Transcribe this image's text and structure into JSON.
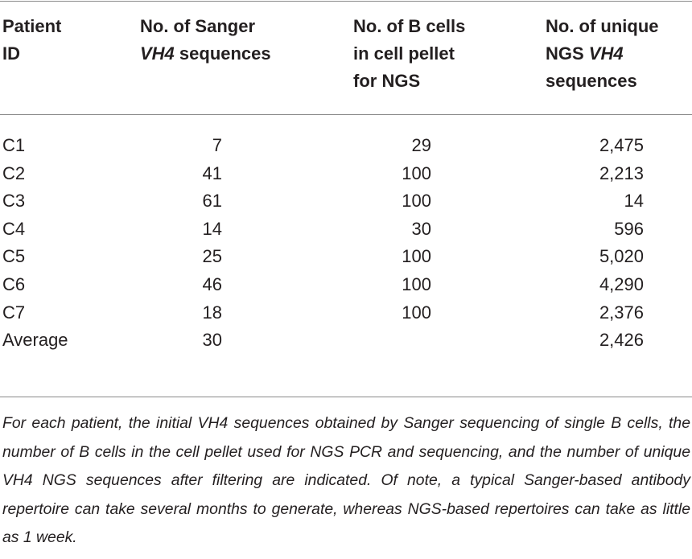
{
  "table": {
    "headers": {
      "patient_id": [
        "Patient",
        "ID"
      ],
      "sanger": {
        "line1": "No. of Sanger",
        "line2_italic": "VH4",
        "line2_rest": " sequences"
      },
      "bcells": [
        "No. of B cells",
        "in cell pellet",
        "for NGS"
      ],
      "ngs": {
        "line1": "No. of unique",
        "line2_plain": "NGS ",
        "line2_italic": "VH4",
        "line3": "sequences"
      }
    },
    "rows": [
      {
        "id": "C1",
        "sanger": "7",
        "bcells": "29",
        "ngs": "2,475"
      },
      {
        "id": "C2",
        "sanger": "41",
        "bcells": "100",
        "ngs": "2,213"
      },
      {
        "id": "C3",
        "sanger": "61",
        "bcells": "100",
        "ngs": "14"
      },
      {
        "id": "C4",
        "sanger": "14",
        "bcells": "30",
        "ngs": "596"
      },
      {
        "id": "C5",
        "sanger": "25",
        "bcells": "100",
        "ngs": "5,020"
      },
      {
        "id": "C6",
        "sanger": "46",
        "bcells": "100",
        "ngs": "4,290"
      },
      {
        "id": "C7",
        "sanger": "18",
        "bcells": "100",
        "ngs": "2,376"
      },
      {
        "id": "Average",
        "sanger": "30",
        "bcells": "",
        "ngs": "2,426"
      }
    ]
  },
  "footnote": "For each patient, the initial VH4 sequences obtained by Sanger sequencing of single B cells, the number of B cells in the cell pellet used for NGS PCR and sequencing, and the number of unique VH4 NGS sequences after filtering are indicated. Of note, a typical Sanger-based antibody repertoire can take several months to generate, whereas NGS-based repertoires can take as little as 1 week."
}
